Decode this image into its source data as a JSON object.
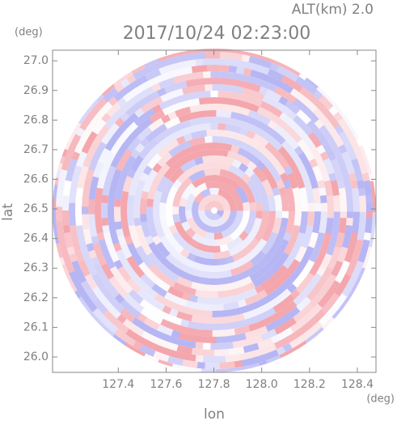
{
  "chart_data": {
    "type": "heatmap",
    "title": "2017/10/24 02:23:00",
    "annotation": "ALT(km) 2.0",
    "xlabel": "lon",
    "ylabel": "lat",
    "xunit": "(deg)",
    "yunit": "(deg)",
    "xlim": [
      127.125,
      128.478
    ],
    "ylim": [
      25.948,
      27.036
    ],
    "xticks": [
      127.4,
      127.6,
      127.8,
      {
        "value": 128.0,
        "label": "128.0"
      },
      128.2,
      128.4
    ],
    "yticks": [
      {
        "value": 26.0,
        "label": "26.0"
      },
      26.1,
      26.2,
      26.3,
      26.4,
      26.5,
      26.6,
      26.7,
      26.8,
      26.9,
      {
        "value": 27.0,
        "label": "27.0"
      }
    ],
    "colors": [
      "#f4a6ad",
      "#ffffff",
      "#b6b6f4"
    ]
  }
}
